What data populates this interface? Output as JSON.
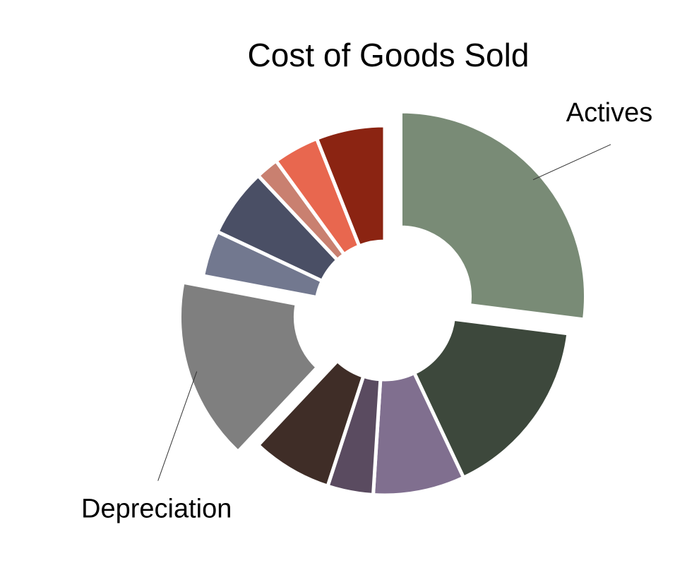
{
  "chart_data": {
    "type": "donut",
    "title": "Cost of Goods Sold",
    "categories": [
      "Actives",
      null,
      null,
      null,
      null,
      "Depreciation",
      null,
      null,
      null,
      null,
      null
    ],
    "values": [
      27,
      16,
      8,
      4,
      7,
      16,
      4,
      6,
      2,
      4,
      6
    ],
    "colors": [
      "#798b76",
      "#3d483c",
      "#806f8f",
      "#5a4b60",
      "#3f2d27",
      "#7f7f7f",
      "#72788f",
      "#4a4f65",
      "#c98070",
      "#e8674f",
      "#8b2412"
    ],
    "exploded": [
      true,
      false,
      false,
      false,
      false,
      true,
      false,
      false,
      false,
      false,
      false
    ]
  }
}
